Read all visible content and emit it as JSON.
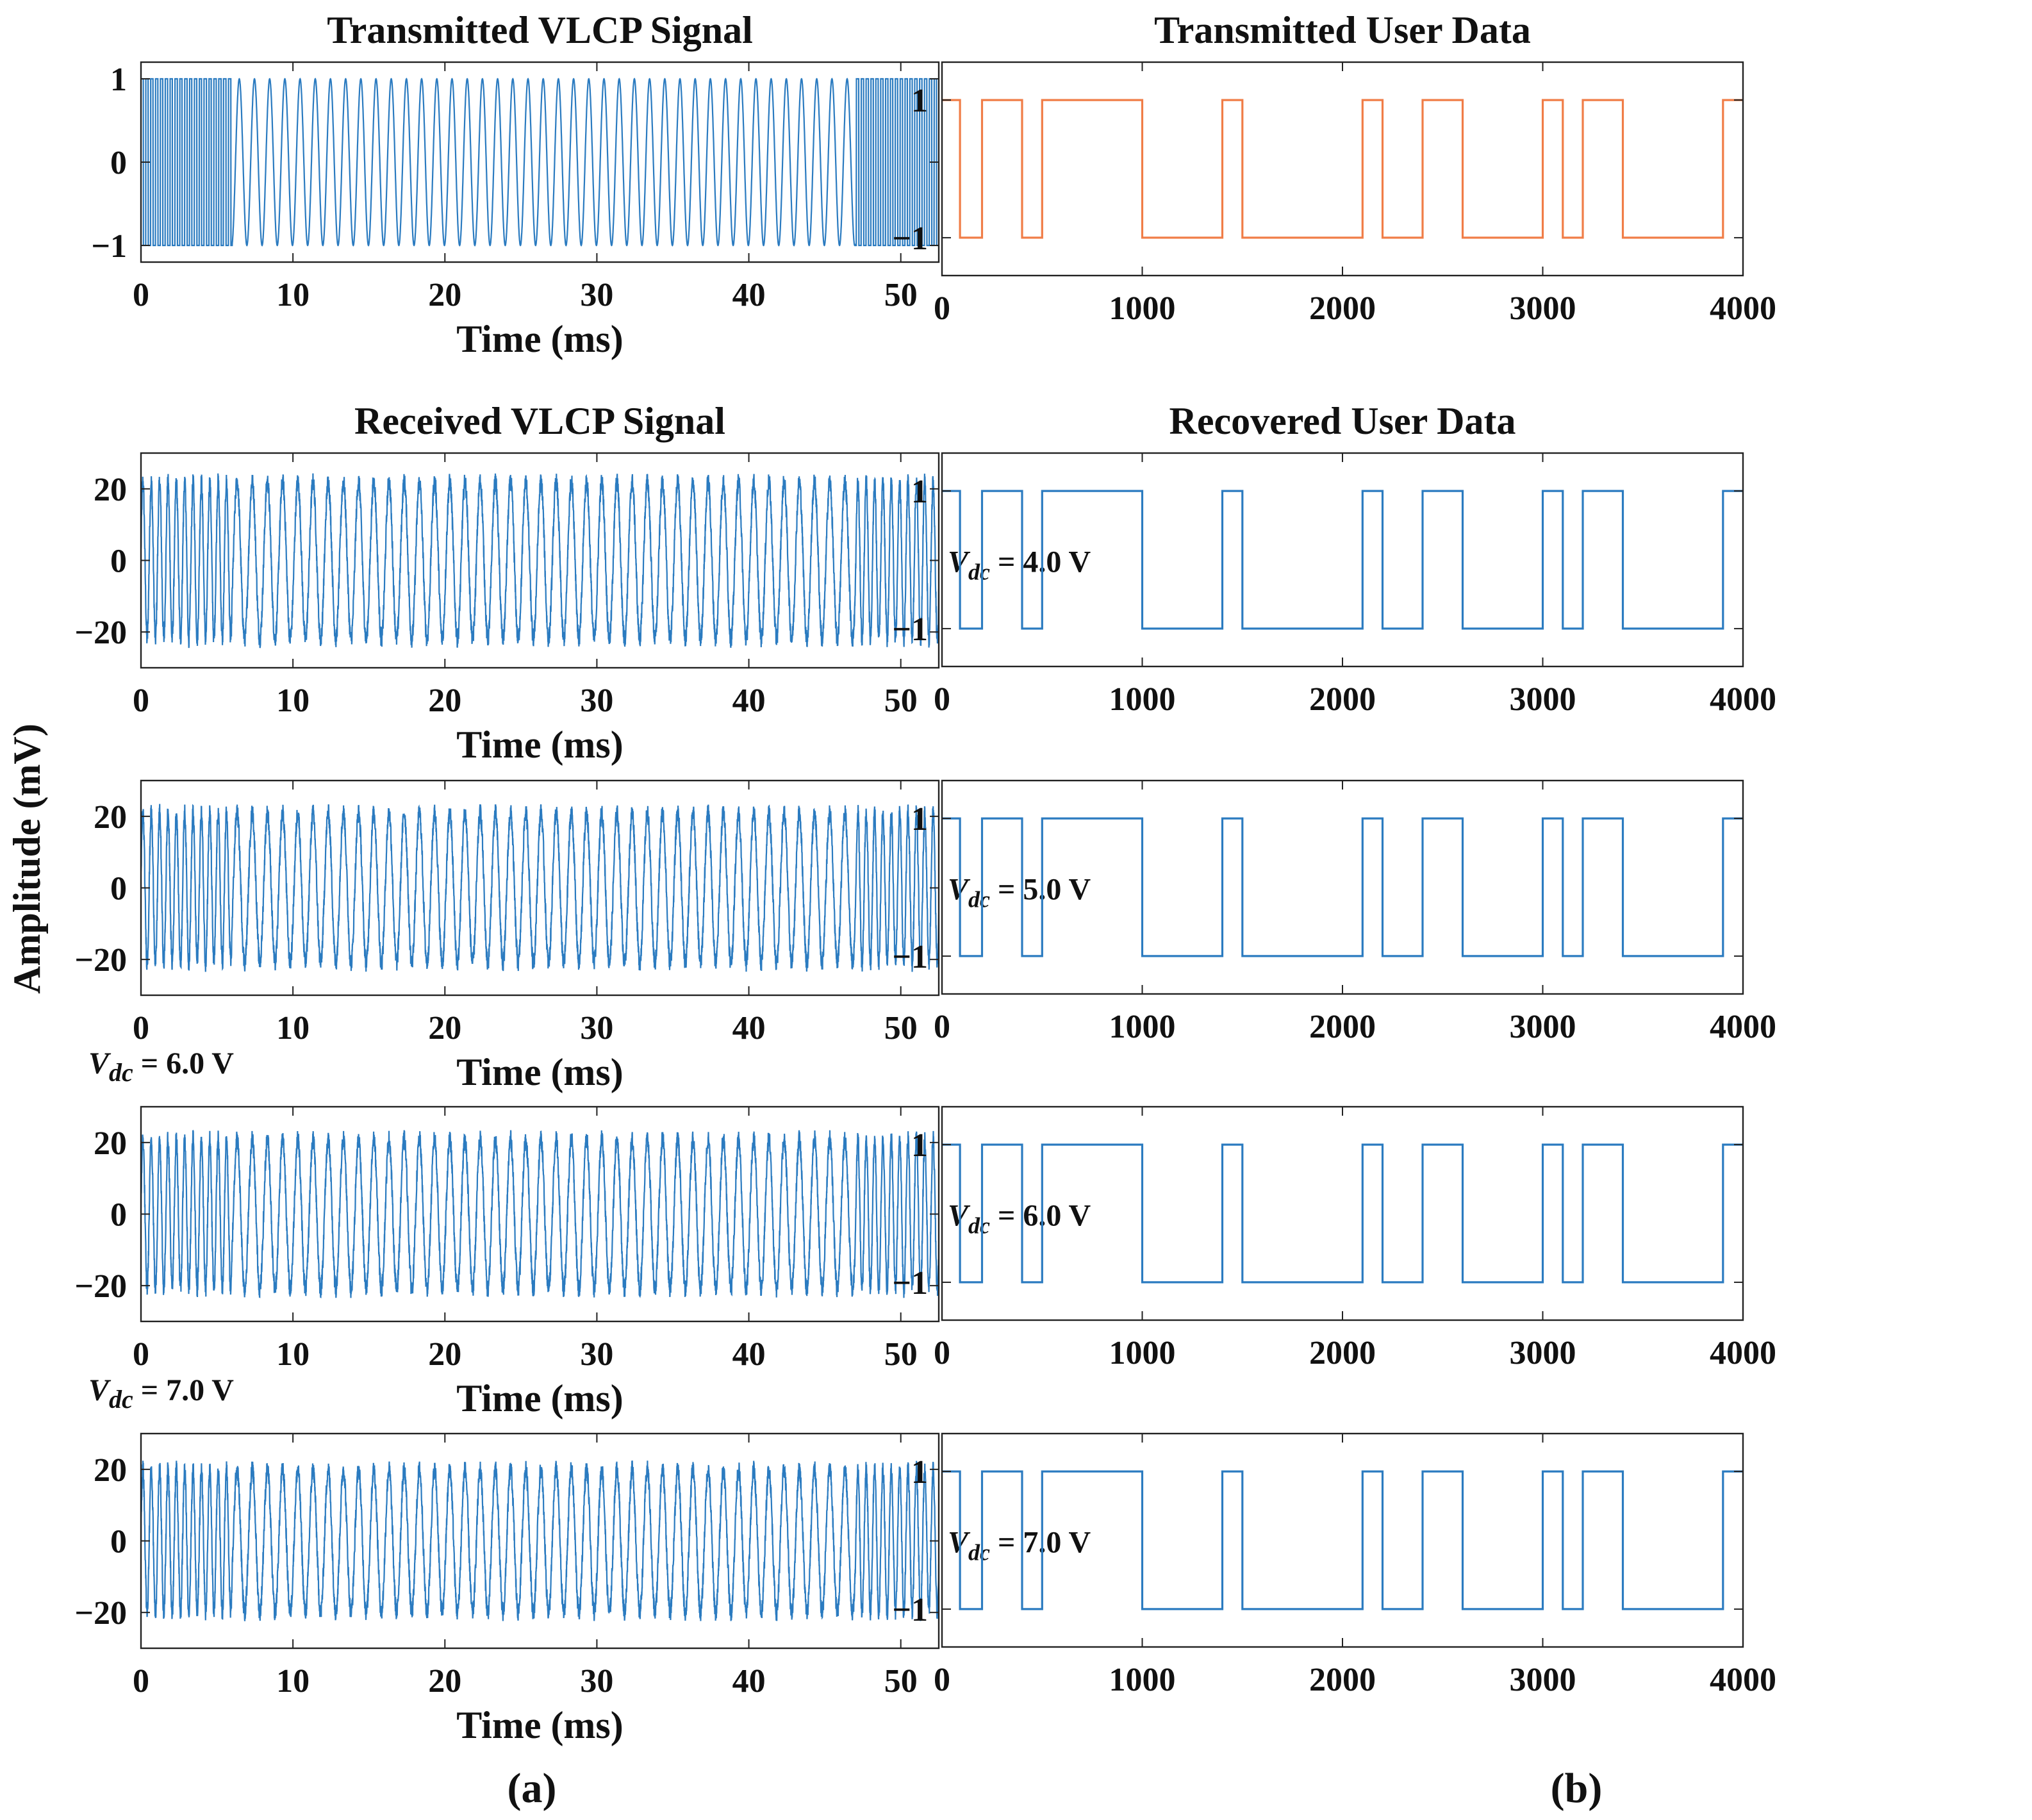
{
  "figure": {
    "y_axis_label": "Amplitude (mV)",
    "panel_labels": [
      "(a)",
      "(b)"
    ]
  },
  "colors": {
    "signal": "#2b7bc0",
    "transmitted_data": "#f07d47",
    "recovered_data": "#2b7bc0",
    "axes": "#222222"
  },
  "chart_data": [
    {
      "id": "tx-signal",
      "type": "line",
      "title": "Transmitted VLCP Signal",
      "xlabel": "Time (ms)",
      "ylabel": "",
      "xlim": [
        0,
        52.5
      ],
      "ylim": [
        -1.2,
        1.2
      ],
      "xticks": [
        0,
        10,
        20,
        30,
        40,
        50
      ],
      "yticks": [
        -1,
        0,
        1
      ],
      "ytick_labels": [
        "−1",
        "0",
        "1"
      ],
      "waveform": {
        "amplitude": 1,
        "clipped": true,
        "segments": [
          {
            "t_start": 0,
            "t_end": 6,
            "period_ms": 0.32
          },
          {
            "t_start": 6,
            "t_end": 47,
            "period_ms": 1.0
          },
          {
            "t_start": 47,
            "t_end": 52.5,
            "period_ms": 0.32
          }
        ]
      },
      "annotation": ""
    },
    {
      "id": "rx-4v",
      "type": "line",
      "title": "Received VLCP Signal",
      "xlabel": "Time (ms)",
      "ylabel": "",
      "xlim": [
        0,
        52.5
      ],
      "ylim": [
        -30,
        30
      ],
      "xticks": [
        0,
        10,
        20,
        30,
        40,
        50
      ],
      "yticks": [
        -20,
        0,
        20
      ],
      "ytick_labels": [
        "−20",
        "0",
        "20"
      ],
      "waveform": {
        "amplitude": 22,
        "noise": 2.5,
        "segments": [
          {
            "t_start": 0,
            "t_end": 6,
            "period_ms": 0.55
          },
          {
            "t_start": 6,
            "t_end": 47,
            "period_ms": 1.0
          },
          {
            "t_start": 47,
            "t_end": 52.5,
            "period_ms": 0.55
          }
        ]
      },
      "annotation": "V<sub>dc</sub> = 4.0 V",
      "annotation_text": "= 4.0 V"
    },
    {
      "id": "rx-5v",
      "type": "line",
      "title": "",
      "xlabel": "Time (ms)",
      "ylabel": "",
      "xlim": [
        0,
        52.5
      ],
      "ylim": [
        -30,
        30
      ],
      "xticks": [
        0,
        10,
        20,
        30,
        40,
        50
      ],
      "yticks": [
        -20,
        0,
        20
      ],
      "ytick_labels": [
        "−20",
        "0",
        "20"
      ],
      "waveform": {
        "amplitude": 21,
        "noise": 2.5,
        "segments": [
          {
            "t_start": 0,
            "t_end": 6,
            "period_ms": 0.55
          },
          {
            "t_start": 6,
            "t_end": 47,
            "period_ms": 1.0
          },
          {
            "t_start": 47,
            "t_end": 52.5,
            "period_ms": 0.55
          }
        ]
      },
      "annotation_text": "= 5.0 V"
    },
    {
      "id": "rx-6v",
      "type": "line",
      "title": "",
      "xlabel": "Time (ms)",
      "ylabel": "",
      "xlim": [
        0,
        52.5
      ],
      "ylim": [
        -30,
        30
      ],
      "xticks": [
        0,
        10,
        20,
        30,
        40,
        50
      ],
      "yticks": [
        -20,
        0,
        20
      ],
      "ytick_labels": [
        "−20",
        "0",
        "20"
      ],
      "waveform": {
        "amplitude": 21,
        "noise": 2.5,
        "segments": [
          {
            "t_start": 0,
            "t_end": 6,
            "period_ms": 0.55
          },
          {
            "t_start": 6,
            "t_end": 47,
            "period_ms": 1.0
          },
          {
            "t_start": 47,
            "t_end": 52.5,
            "period_ms": 0.55
          }
        ]
      },
      "annotation_text": "= 6.0 V",
      "extra_annotation_text": "= 6.0 V"
    },
    {
      "id": "rx-7v",
      "type": "line",
      "title": "",
      "xlabel": "Time (ms)",
      "ylabel": "",
      "xlim": [
        0,
        52.5
      ],
      "ylim": [
        -30,
        30
      ],
      "xticks": [
        0,
        10,
        20,
        30,
        40,
        50
      ],
      "yticks": [
        -20,
        0,
        20
      ],
      "ytick_labels": [
        "−20",
        "0",
        "20"
      ],
      "waveform": {
        "amplitude": 20,
        "noise": 2.5,
        "segments": [
          {
            "t_start": 0,
            "t_end": 6,
            "period_ms": 0.55
          },
          {
            "t_start": 6,
            "t_end": 47,
            "period_ms": 1.0
          },
          {
            "t_start": 47,
            "t_end": 52.5,
            "period_ms": 0.55
          }
        ]
      },
      "annotation_text": "= 7.0 V",
      "extra_annotation_text": "= 7.0 V"
    },
    {
      "id": "tx-data",
      "type": "line",
      "title": "Transmitted User Data",
      "xlabel": "",
      "ylabel": "",
      "xlim": [
        0,
        4000
      ],
      "ylim": [
        -1.55,
        1.55
      ],
      "xticks": [
        0,
        1000,
        2000,
        3000,
        4000
      ],
      "yticks": [
        -1,
        1
      ],
      "ytick_labels": [
        "−1",
        "1"
      ],
      "step": {
        "x": [
          0,
          90,
          200,
          400,
          500,
          1000,
          1400,
          1500,
          2100,
          2200,
          2400,
          2600,
          3000,
          3100,
          3200,
          3400,
          3900,
          4000
        ],
        "y": [
          1,
          -1,
          1,
          -1,
          1,
          -1,
          1,
          -1,
          1,
          -1,
          1,
          -1,
          1,
          -1,
          1,
          -1,
          1,
          1
        ]
      }
    },
    {
      "id": "rx-data-4v",
      "type": "line",
      "title": "Recovered User Data",
      "xlabel": "",
      "ylabel": "",
      "xlim": [
        0,
        4000
      ],
      "ylim": [
        -1.55,
        1.55
      ],
      "xticks": [
        0,
        1000,
        2000,
        3000,
        4000
      ],
      "yticks": [
        -1,
        1
      ],
      "ytick_labels": [
        "−1",
        "1"
      ],
      "step": {
        "x": [
          0,
          90,
          200,
          400,
          500,
          1000,
          1400,
          1500,
          2100,
          2200,
          2400,
          2600,
          3000,
          3100,
          3200,
          3400,
          3900,
          4000
        ],
        "y": [
          1,
          -1,
          1,
          -1,
          1,
          -1,
          1,
          -1,
          1,
          -1,
          1,
          -1,
          1,
          -1,
          1,
          -1,
          1,
          1
        ]
      }
    },
    {
      "id": "rx-data-5v",
      "type": "line",
      "title": "",
      "xlabel": "",
      "ylabel": "",
      "xlim": [
        0,
        4000
      ],
      "ylim": [
        -1.55,
        1.55
      ],
      "xticks": [
        0,
        1000,
        2000,
        3000,
        4000
      ],
      "yticks": [
        -1,
        1
      ],
      "ytick_labels": [
        "−1",
        "1"
      ],
      "step": {
        "x": [
          0,
          90,
          200,
          400,
          500,
          1000,
          1400,
          1500,
          2100,
          2200,
          2400,
          2600,
          3000,
          3100,
          3200,
          3400,
          3900,
          4000
        ],
        "y": [
          1,
          -1,
          1,
          -1,
          1,
          -1,
          1,
          -1,
          1,
          -1,
          1,
          -1,
          1,
          -1,
          1,
          -1,
          1,
          1
        ]
      }
    },
    {
      "id": "rx-data-6v",
      "type": "line",
      "title": "",
      "xlabel": "",
      "ylabel": "",
      "xlim": [
        0,
        4000
      ],
      "ylim": [
        -1.55,
        1.55
      ],
      "xticks": [
        0,
        1000,
        2000,
        3000,
        4000
      ],
      "yticks": [
        -1,
        1
      ],
      "ytick_labels": [
        "−1",
        "1"
      ],
      "step": {
        "x": [
          0,
          90,
          200,
          400,
          500,
          1000,
          1400,
          1500,
          2100,
          2200,
          2400,
          2600,
          3000,
          3100,
          3200,
          3400,
          3900,
          4000
        ],
        "y": [
          1,
          -1,
          1,
          -1,
          1,
          -1,
          1,
          -1,
          1,
          -1,
          1,
          -1,
          1,
          -1,
          1,
          -1,
          1,
          1
        ]
      }
    },
    {
      "id": "rx-data-7v",
      "type": "line",
      "title": "",
      "xlabel": "",
      "ylabel": "",
      "xlim": [
        0,
        4000
      ],
      "ylim": [
        -1.55,
        1.55
      ],
      "xticks": [
        0,
        1000,
        2000,
        3000,
        4000
      ],
      "yticks": [
        -1,
        1
      ],
      "ytick_labels": [
        "−1",
        "1"
      ],
      "step": {
        "x": [
          0,
          90,
          200,
          400,
          500,
          1000,
          1400,
          1500,
          2100,
          2200,
          2400,
          2600,
          3000,
          3100,
          3200,
          3400,
          3900,
          4000
        ],
        "y": [
          1,
          -1,
          1,
          -1,
          1,
          -1,
          1,
          -1,
          1,
          -1,
          1,
          -1,
          1,
          -1,
          1,
          -1,
          1,
          1
        ]
      }
    }
  ]
}
